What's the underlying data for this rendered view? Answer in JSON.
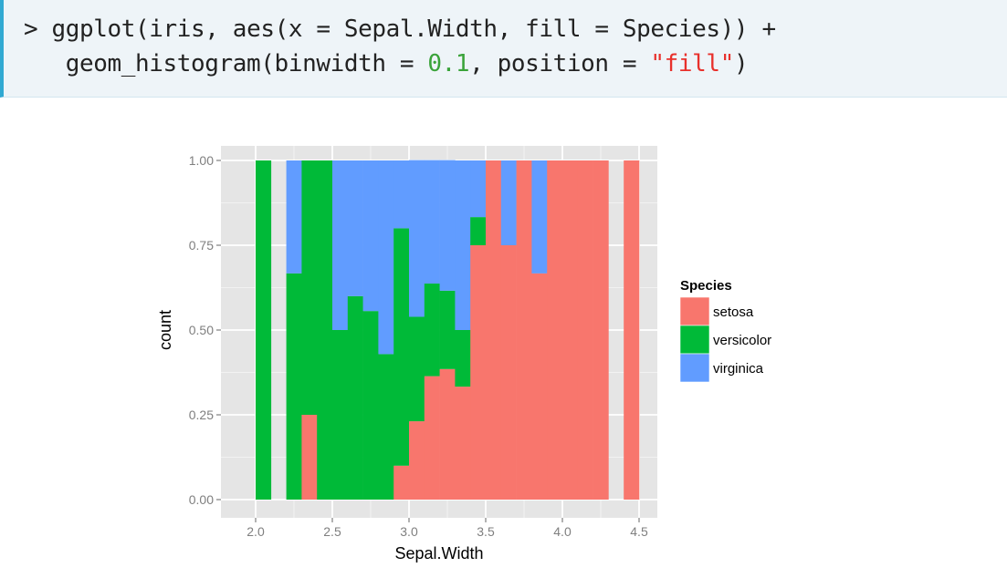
{
  "code": {
    "prompt": ">",
    "line1": " ggplot(iris, aes(x = Sepal.Width, fill = Species)) +",
    "line2_prefix": "   geom_histogram(binwidth = ",
    "line2_number": "0.1",
    "line2_middle": ", position = ",
    "line2_string": "\"fill\"",
    "line2_suffix": ")"
  },
  "colors": {
    "setosa": "#F8766D",
    "versicolor": "#00BA38",
    "virginica": "#619CFF",
    "panel_bg": "#E5E5E5",
    "grid_major": "#FFFFFF",
    "grid_minor": "#F2F2F2",
    "code_border": "#31a9d2",
    "code_bg": "#eef4f8"
  },
  "chart_data": {
    "type": "bar",
    "subtype": "stacked-fill-histogram",
    "title": "",
    "xlabel": "Sepal.Width",
    "ylabel": "count",
    "xlim": [
      1.8,
      4.6
    ],
    "ylim": [
      -0.05,
      1.05
    ],
    "x_ticks": [
      "2.0",
      "2.5",
      "3.0",
      "3.5",
      "4.0",
      "4.5"
    ],
    "x_tick_values": [
      2.0,
      2.5,
      3.0,
      3.5,
      4.0,
      4.5
    ],
    "y_ticks": [
      "0.00",
      "0.25",
      "0.50",
      "0.75",
      "1.00"
    ],
    "y_tick_values": [
      0.0,
      0.25,
      0.5,
      0.75,
      1.0
    ],
    "binwidth": 0.1,
    "grid": true,
    "legend": {
      "title": "Species",
      "position": "right",
      "entries": [
        "setosa",
        "versicolor",
        "virginica"
      ]
    },
    "bin_starts": [
      2.0,
      2.1,
      2.2,
      2.3,
      2.4,
      2.5,
      2.6,
      2.7,
      2.8,
      2.9,
      3.0,
      3.1,
      3.2,
      3.3,
      3.4,
      3.5,
      3.6,
      3.7,
      3.8,
      3.9,
      4.0,
      4.1,
      4.2,
      4.3,
      4.4
    ],
    "series": [
      {
        "name": "setosa",
        "values": [
          0,
          0,
          0,
          0.25,
          0,
          0,
          0,
          0,
          0,
          0.1,
          0.231,
          0.364,
          0.385,
          0.333,
          0.75,
          1.0,
          0.75,
          1.0,
          0.667,
          1.0,
          1.0,
          1.0,
          1.0,
          0,
          1.0
        ]
      },
      {
        "name": "versicolor",
        "values": [
          1.0,
          0,
          0.667,
          0.75,
          1.0,
          0.5,
          0.6,
          0.556,
          0.429,
          0.7,
          0.308,
          0.273,
          0.231,
          0.167,
          0.083,
          0,
          0,
          0,
          0,
          0,
          0,
          0,
          0,
          0,
          0
        ]
      },
      {
        "name": "virginica",
        "values": [
          0,
          0,
          0.333,
          0,
          0,
          0.5,
          0.4,
          0.444,
          0.571,
          0.2,
          0.462,
          0.364,
          0.385,
          0.5,
          0.167,
          0,
          0.25,
          0,
          0.333,
          0,
          0,
          0,
          0,
          0,
          0
        ]
      }
    ]
  }
}
